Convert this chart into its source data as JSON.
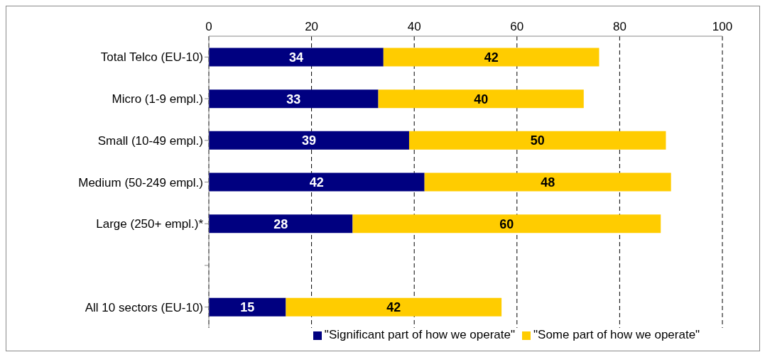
{
  "chart_data": {
    "type": "bar",
    "orientation": "horizontal",
    "stacked": true,
    "categories": [
      "Total Telco (EU-10)",
      "Micro (1-9 empl.)",
      "Small (10-49 empl.)",
      "Medium (50-249 empl.)",
      "Large (250+ empl.)*",
      null,
      "All 10 sectors (EU-10)"
    ],
    "series": [
      {
        "name": "\"Significant part of how we operate\"",
        "color": "#000080",
        "values": [
          34,
          33,
          39,
          42,
          28,
          null,
          15
        ]
      },
      {
        "name": "\"Some part of how we operate\"",
        "color": "#ffcc00",
        "values": [
          42,
          40,
          50,
          48,
          60,
          null,
          42
        ]
      }
    ],
    "xlim": [
      0,
      100
    ],
    "xticks": [
      0,
      20,
      40,
      60,
      80,
      100
    ],
    "grid": "x",
    "legend": "bottom",
    "data_labels": true
  }
}
